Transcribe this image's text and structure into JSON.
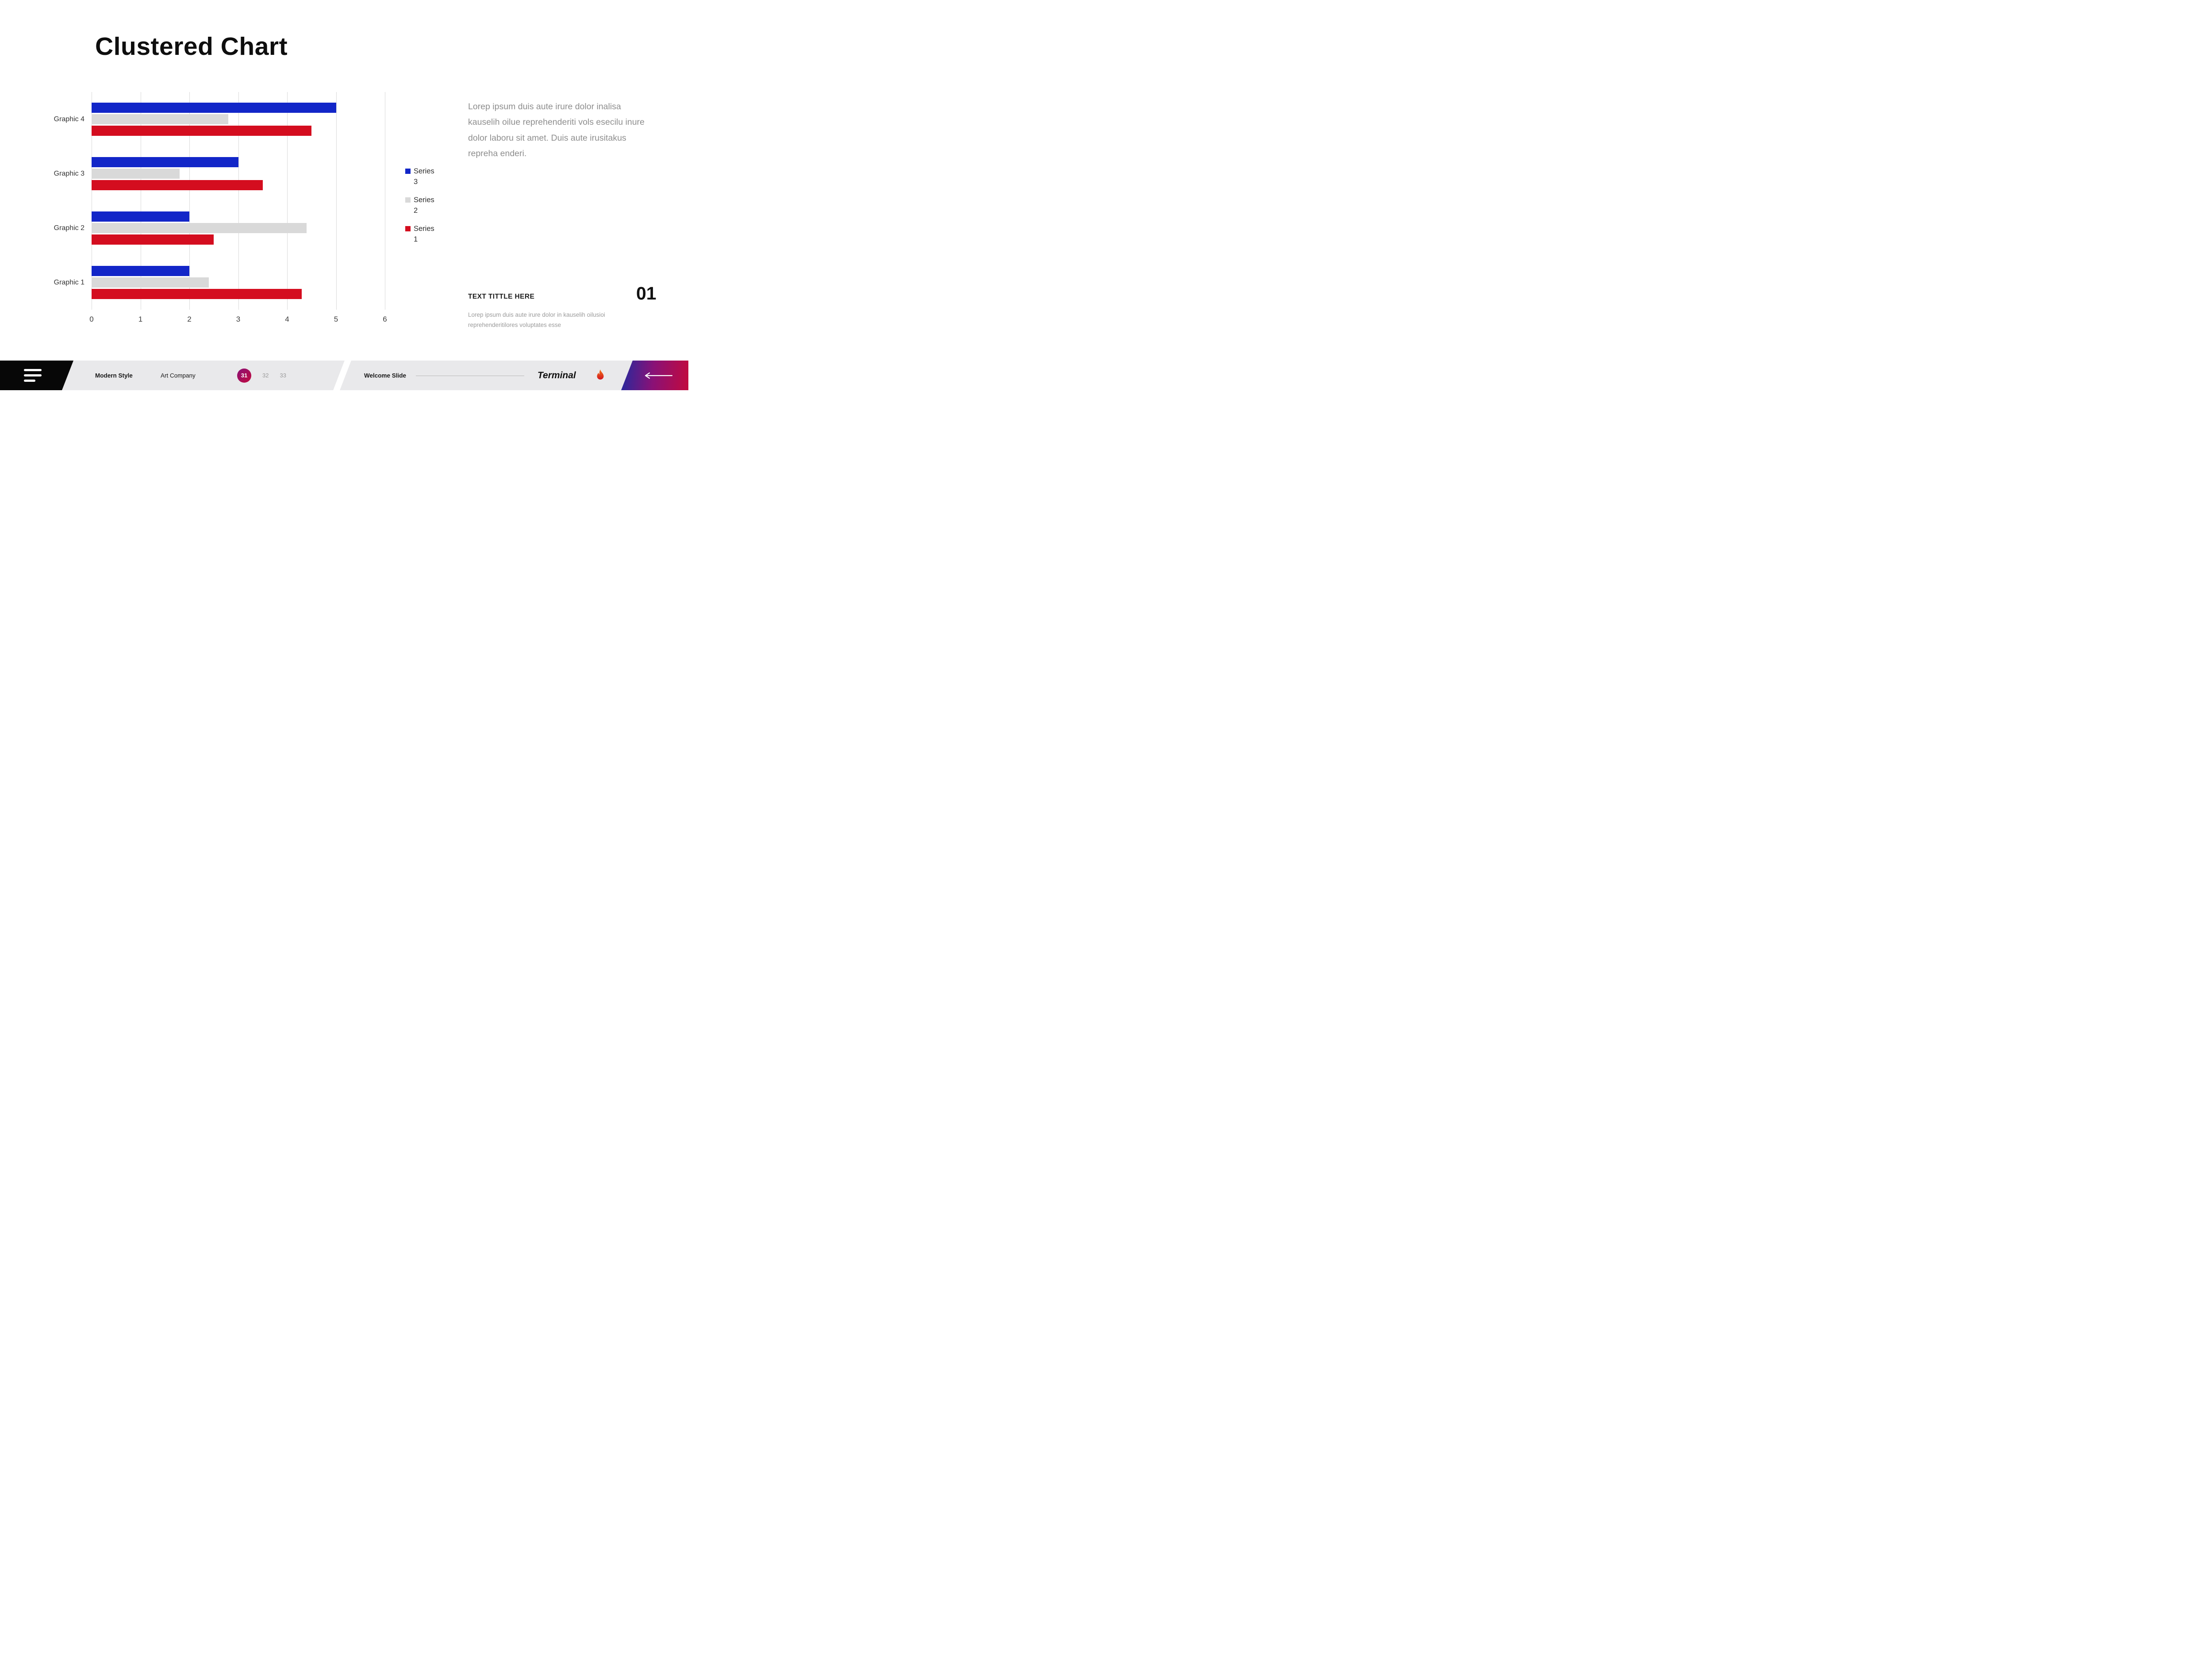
{
  "slide": {
    "title": "Clustered Chart"
  },
  "chart_data": {
    "type": "bar",
    "orientation": "horizontal",
    "title": "",
    "xlabel": "",
    "ylabel": "",
    "categories": [
      "Graphic 4",
      "Graphic 3",
      "Graphic 2",
      "Graphic 1"
    ],
    "series": [
      {
        "name": "Series 3",
        "color": "#1226c8",
        "values": [
          5.0,
          3.0,
          2.0,
          2.0
        ]
      },
      {
        "name": "Series 2",
        "color": "#d9d9d9",
        "values": [
          2.8,
          1.8,
          4.4,
          2.4
        ]
      },
      {
        "name": "Series 1",
        "color": "#d40d1f",
        "values": [
          4.5,
          3.5,
          2.5,
          4.3
        ]
      }
    ],
    "xlim": [
      0,
      6
    ],
    "x_ticks": [
      0,
      1,
      2,
      3,
      4,
      5,
      6
    ],
    "grid": true,
    "legend_position": "right"
  },
  "body_text": "Lorep  ipsum duis aute irure dolor inalisa kauselih oilue reprehenderiti vols esecilu inure dolor laboru sit amet. Duis aute irusitakus repreha enderi.",
  "callout": {
    "title": "TEXT TITTLE HERE",
    "number": "01",
    "text": "Lorep  ipsum duis aute irure dolor in kauselih oilusioi reprehenderitilores voluptates esse"
  },
  "footer": {
    "brand_style": "Modern Style",
    "company": "Art Company",
    "pages": [
      "31",
      "32",
      "33"
    ],
    "active_page": "31",
    "slide_label": "Welcome Slide",
    "logo_text": "Terminal"
  },
  "colors": {
    "grad-blue": "#242a9e",
    "grad-purple": "#8a1176",
    "grad-red": "#c20a3e",
    "footer-band": "#e9e9eb",
    "flame-orange": "#f07818",
    "flame-red": "#d41420"
  }
}
